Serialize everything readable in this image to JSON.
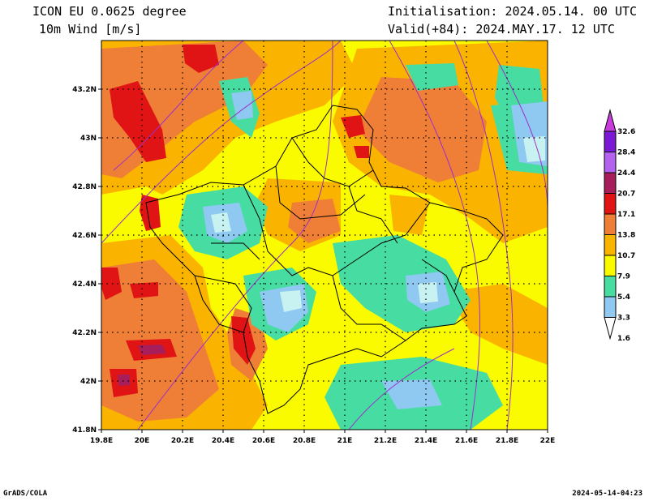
{
  "header": {
    "model": "ICON EU 0.0625 degree",
    "variable": "10m Wind [m/s]",
    "init": "Initialisation: 2024.05.14. 00 UTC",
    "valid": "Valid(+84): 2024.MAY.17. 12 UTC"
  },
  "footer": {
    "credit": "GrADS/COLA",
    "timestamp": "2024-05-14-04:23"
  },
  "axes": {
    "lon_range": [
      19.8,
      22.0
    ],
    "lat_range": [
      41.8,
      43.4
    ],
    "lon_ticks": [
      "19.8E",
      "20E",
      "20.2E",
      "20.4E",
      "20.6E",
      "20.8E",
      "21E",
      "21.2E",
      "21.4E",
      "21.6E",
      "21.8E",
      "22E"
    ],
    "lat_ticks": [
      "41.8N",
      "42N",
      "42.2N",
      "42.4N",
      "42.6N",
      "42.8N",
      "43N",
      "43.2N"
    ],
    "lon_values": [
      19.8,
      20.0,
      20.2,
      20.4,
      20.6,
      20.8,
      21.0,
      21.2,
      21.4,
      21.6,
      21.8,
      22.0
    ],
    "lat_values": [
      41.8,
      42.0,
      42.2,
      42.4,
      42.6,
      42.8,
      43.0,
      43.2
    ]
  },
  "colorbar": {
    "labels": [
      "1.6",
      "3.3",
      "5.4",
      "7.9",
      "10.7",
      "13.8",
      "17.1",
      "20.7",
      "24.4",
      "28.4",
      "32.6"
    ],
    "colors": [
      "#c8f2f2",
      "#8fc8f0",
      "#46dca2",
      "#fbfb00",
      "#fab400",
      "#ef7f37",
      "#e01414",
      "#a81e5a",
      "#b463f0",
      "#7b18d6",
      "#c83cdc"
    ]
  },
  "palette": {
    "background": "#fbfb00",
    "orange": "#fab400",
    "dark_orange": "#ef7f37",
    "red": "#e01414",
    "maroon": "#a81e5a",
    "green": "#46dca2",
    "blue": "#8fc8f0",
    "cyan": "#c8f2f2",
    "purple": "#c83cdc"
  }
}
